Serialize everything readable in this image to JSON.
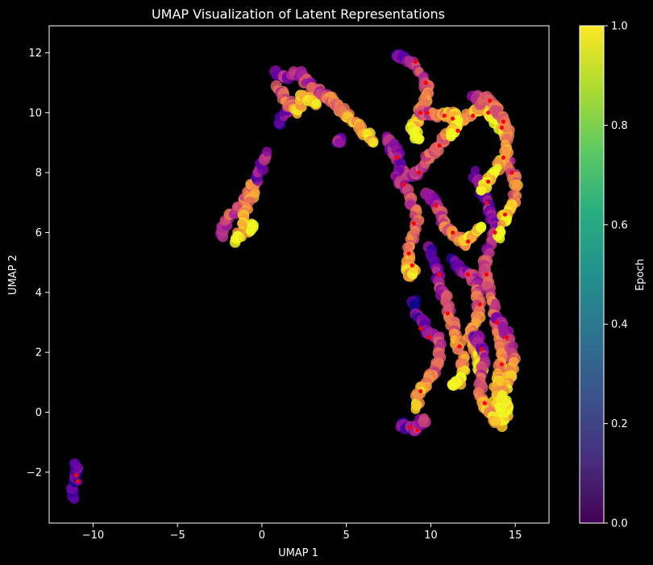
{
  "chart_data": {
    "type": "scatter",
    "title": "UMAP Visualization of Latent Representations",
    "xlabel": "UMAP 1",
    "ylabel": "UMAP 2",
    "xlim": [
      -12.6,
      17.0
    ],
    "ylim": [
      -3.7,
      12.9
    ],
    "xticks": [
      -10,
      -5,
      0,
      5,
      10,
      15
    ],
    "xtick_labels": [
      "−10",
      "−5",
      "0",
      "5",
      "10",
      "15"
    ],
    "yticks": [
      -2,
      0,
      2,
      4,
      6,
      8,
      10,
      12
    ],
    "ytick_labels": [
      "−2",
      "0",
      "2",
      "4",
      "6",
      "8",
      "10",
      "12"
    ],
    "grid": false,
    "background": "#000000",
    "colormap_main": "plasma",
    "highlight_color": "#ff0000",
    "colorbar": {
      "label": "Epoch",
      "colormap": "viridis",
      "range": [
        0.0,
        1.0
      ],
      "ticks": [
        0.0,
        0.2,
        0.4,
        0.6,
        0.8,
        1.0
      ],
      "tick_labels": [
        "0.0",
        "0.2",
        "0.4",
        "0.6",
        "0.8",
        "1.0"
      ]
    },
    "path_series": [
      {
        "points": [
          [
            -11.2,
            -2.9
          ],
          [
            -11.1,
            -2.4
          ],
          [
            -11.0,
            -2.0
          ],
          [
            -11.1,
            -1.7
          ]
        ],
        "color": [
          0.05,
          0.2
        ],
        "highlight": [
          [
            -10.9,
            -2.3
          ],
          [
            -11.0,
            -2.1
          ]
        ]
      },
      {
        "points": [
          [
            -2.5,
            5.9
          ],
          [
            -2.2,
            6.2
          ],
          [
            -1.8,
            6.6
          ],
          [
            -1.3,
            6.9
          ],
          [
            -0.8,
            7.3
          ],
          [
            -0.3,
            7.7
          ],
          [
            -0.7,
            7.0
          ],
          [
            -1.2,
            6.3
          ],
          [
            -1.7,
            5.7
          ],
          [
            -0.8,
            6.0
          ],
          [
            -0.6,
            6.3
          ]
        ],
        "color": [
          0.4,
          1.0
        ],
        "highlight": []
      },
      {
        "points": [
          [
            -0.3,
            7.7
          ],
          [
            -0.1,
            8.1
          ],
          [
            0.3,
            8.7
          ]
        ],
        "color": [
          0.2,
          0.3
        ],
        "highlight": []
      },
      {
        "points": [
          [
            1.0,
            9.6
          ],
          [
            1.5,
            10.0
          ],
          [
            1.8,
            10.3
          ]
        ],
        "color": [
          0.15,
          0.3
        ],
        "highlight": []
      },
      {
        "points": [
          [
            0.9,
            11.3
          ],
          [
            1.5,
            11.2
          ],
          [
            2.2,
            11.3
          ],
          [
            2.6,
            11.1
          ],
          [
            3.1,
            10.8
          ],
          [
            3.6,
            10.6
          ],
          [
            4.0,
            10.5
          ],
          [
            4.4,
            10.3
          ],
          [
            4.8,
            10.0
          ],
          [
            5.2,
            9.8
          ],
          [
            5.7,
            9.6
          ],
          [
            6.2,
            9.3
          ],
          [
            6.6,
            9.0
          ]
        ],
        "color": [
          0.25,
          0.95
        ],
        "highlight": []
      },
      {
        "points": [
          [
            1.0,
            10.8
          ],
          [
            1.4,
            10.5
          ],
          [
            2.0,
            10.0
          ],
          [
            2.5,
            10.6
          ],
          [
            3.2,
            10.3
          ]
        ],
        "color": [
          0.5,
          1.0
        ],
        "highlight": []
      },
      {
        "points": [
          [
            4.5,
            9.1
          ],
          [
            4.6,
            9.0
          ]
        ],
        "color": [
          0.2,
          0.3
        ],
        "highlight": []
      },
      {
        "points": [
          [
            7.3,
            9.2
          ],
          [
            7.7,
            8.8
          ],
          [
            8.1,
            8.4
          ],
          [
            8.5,
            7.9
          ],
          [
            9.0,
            7.9
          ],
          [
            9.5,
            8.3
          ],
          [
            10.0,
            8.6
          ],
          [
            10.5,
            8.9
          ],
          [
            11.0,
            9.2
          ],
          [
            11.5,
            9.5
          ],
          [
            12.0,
            9.8
          ],
          [
            12.5,
            10.0
          ],
          [
            13.0,
            10.1
          ],
          [
            13.5,
            10.0
          ],
          [
            14.0,
            9.6
          ],
          [
            14.5,
            9.2
          ]
        ],
        "color": [
          0.3,
          1.0
        ],
        "highlight": [
          [
            8.0,
            8.5
          ],
          [
            9.3,
            8.0
          ],
          [
            10.5,
            8.9
          ],
          [
            11.6,
            9.4
          ],
          [
            12.5,
            9.9
          ],
          [
            13.4,
            10.0
          ],
          [
            14.2,
            9.5
          ]
        ]
      },
      {
        "points": [
          [
            7.8,
            9.0
          ],
          [
            8.2,
            8.4
          ],
          [
            8.0,
            7.8
          ],
          [
            8.4,
            7.5
          ],
          [
            8.8,
            7.0
          ],
          [
            9.2,
            6.5
          ],
          [
            9.0,
            6.0
          ],
          [
            8.8,
            5.5
          ],
          [
            8.6,
            5.0
          ],
          [
            8.8,
            4.5
          ],
          [
            9.0,
            4.8
          ]
        ],
        "color": [
          0.2,
          0.9
        ],
        "highlight": [
          [
            8.4,
            7.6
          ],
          [
            9.0,
            6.3
          ],
          [
            8.7,
            5.3
          ],
          [
            8.9,
            4.9
          ]
        ]
      },
      {
        "points": [
          [
            8.0,
            12.0
          ],
          [
            8.5,
            11.8
          ],
          [
            9.0,
            11.6
          ],
          [
            9.5,
            11.2
          ],
          [
            9.8,
            10.8
          ],
          [
            9.6,
            10.3
          ],
          [
            9.3,
            9.8
          ],
          [
            9.0,
            9.5
          ],
          [
            9.3,
            9.1
          ]
        ],
        "color": [
          0.2,
          1.0
        ],
        "highlight": [
          [
            9.1,
            11.7
          ],
          [
            9.7,
            11.0
          ],
          [
            9.4,
            10.0
          ]
        ]
      },
      {
        "points": [
          [
            9.3,
            10.0
          ],
          [
            9.8,
            10.0
          ],
          [
            10.3,
            9.9
          ],
          [
            10.8,
            9.9
          ],
          [
            11.3,
            10.0
          ],
          [
            11.5,
            9.6
          ],
          [
            11.2,
            9.2
          ]
        ],
        "color": [
          0.4,
          1.0
        ],
        "highlight": [
          [
            9.8,
            10.0
          ],
          [
            10.8,
            9.9
          ],
          [
            11.3,
            9.8
          ]
        ]
      },
      {
        "points": [
          [
            9.8,
            7.3
          ],
          [
            10.2,
            7.0
          ],
          [
            10.5,
            6.7
          ],
          [
            10.8,
            6.3
          ],
          [
            11.2,
            6.0
          ],
          [
            11.6,
            5.8
          ],
          [
            12.0,
            5.6
          ],
          [
            12.5,
            5.9
          ],
          [
            13.0,
            6.2
          ]
        ],
        "color": [
          0.3,
          1.0
        ],
        "highlight": [
          [
            10.3,
            6.9
          ],
          [
            11.3,
            6.0
          ],
          [
            12.2,
            5.7
          ]
        ]
      },
      {
        "points": [
          [
            10.0,
            5.5
          ],
          [
            10.3,
            5.0
          ],
          [
            10.5,
            4.5
          ],
          [
            10.7,
            4.0
          ],
          [
            11.0,
            3.5
          ],
          [
            11.3,
            3.0
          ],
          [
            11.5,
            2.5
          ],
          [
            11.8,
            2.0
          ],
          [
            12.0,
            1.5
          ],
          [
            11.7,
            1.0
          ],
          [
            11.3,
            0.9
          ]
        ],
        "color": [
          0.2,
          1.0
        ],
        "highlight": [
          [
            10.5,
            4.6
          ],
          [
            11.0,
            3.3
          ],
          [
            11.7,
            2.2
          ]
        ]
      },
      {
        "points": [
          [
            11.4,
            5.1
          ],
          [
            11.8,
            4.8
          ],
          [
            12.2,
            4.6
          ],
          [
            12.6,
            4.4
          ],
          [
            12.8,
            4.0
          ],
          [
            12.9,
            3.5
          ],
          [
            12.6,
            3.0
          ],
          [
            12.3,
            2.6
          ],
          [
            12.5,
            2.2
          ],
          [
            12.8,
            1.8
          ],
          [
            13.0,
            1.3
          ]
        ],
        "color": [
          0.2,
          1.0
        ],
        "highlight": [
          [
            12.2,
            4.6
          ],
          [
            12.9,
            3.6
          ]
        ]
      },
      {
        "points": [
          [
            9.0,
            3.7
          ],
          [
            9.3,
            3.2
          ],
          [
            9.6,
            2.8
          ],
          [
            10.0,
            2.6
          ],
          [
            10.4,
            2.5
          ],
          [
            10.6,
            2.0
          ],
          [
            10.3,
            1.5
          ],
          [
            10.0,
            1.2
          ],
          [
            9.6,
            0.9
          ],
          [
            9.3,
            0.6
          ],
          [
            9.1,
            0.1
          ]
        ],
        "color": [
          0.1,
          0.9
        ],
        "highlight": [
          [
            9.4,
            2.8
          ],
          [
            9.9,
            2.5
          ],
          [
            9.4,
            0.7
          ]
        ]
      },
      {
        "points": [
          [
            8.2,
            -0.4
          ],
          [
            8.6,
            -0.5
          ],
          [
            9.0,
            -0.6
          ],
          [
            9.3,
            -0.5
          ],
          [
            9.6,
            -0.2
          ]
        ],
        "color": [
          0.1,
          0.5
        ],
        "highlight": [
          [
            8.8,
            -0.5
          ],
          [
            9.2,
            -0.6
          ]
        ]
      },
      {
        "points": [
          [
            12.6,
            8.0
          ],
          [
            13.0,
            7.5
          ],
          [
            13.3,
            7.0
          ],
          [
            13.6,
            6.5
          ],
          [
            13.8,
            6.0
          ],
          [
            13.5,
            5.5
          ],
          [
            13.2,
            5.0
          ],
          [
            13.3,
            4.5
          ],
          [
            13.5,
            4.0
          ],
          [
            13.7,
            3.5
          ],
          [
            13.9,
            3.0
          ],
          [
            14.1,
            2.5
          ],
          [
            14.3,
            2.0
          ],
          [
            14.1,
            1.5
          ],
          [
            13.9,
            1.0
          ],
          [
            13.8,
            0.5
          ],
          [
            13.9,
            0.0
          ],
          [
            14.1,
            -0.4
          ],
          [
            14.4,
            -0.1
          ],
          [
            14.5,
            0.4
          ]
        ],
        "color": [
          0.2,
          1.0
        ],
        "highlight": [
          [
            13.3,
            7.0
          ],
          [
            13.8,
            6.0
          ],
          [
            13.3,
            4.6
          ],
          [
            13.9,
            3.0
          ],
          [
            14.2,
            1.6
          ]
        ]
      },
      {
        "points": [
          [
            14.5,
            8.5
          ],
          [
            14.8,
            8.0
          ],
          [
            15.1,
            7.6
          ],
          [
            14.9,
            7.0
          ],
          [
            14.5,
            6.7
          ],
          [
            14.3,
            6.3
          ],
          [
            14.1,
            5.8
          ]
        ],
        "color": [
          0.5,
          1.0
        ],
        "highlight": [
          [
            14.8,
            8.0
          ],
          [
            14.4,
            6.6
          ]
        ]
      },
      {
        "points": [
          [
            12.6,
            2.6
          ],
          [
            12.9,
            2.2
          ],
          [
            13.2,
            1.8
          ],
          [
            13.1,
            1.2
          ],
          [
            12.9,
            0.7
          ],
          [
            13.2,
            0.3
          ],
          [
            13.5,
            0.0
          ],
          [
            13.8,
            -0.3
          ]
        ],
        "color": [
          0.2,
          0.9
        ],
        "highlight": [
          [
            13.0,
            2.1
          ],
          [
            13.2,
            0.3
          ]
        ]
      },
      {
        "points": [
          [
            14.0,
            3.2
          ],
          [
            14.4,
            2.8
          ],
          [
            14.7,
            2.2
          ],
          [
            14.9,
            1.6
          ],
          [
            14.6,
            1.1
          ],
          [
            14.3,
            0.6
          ],
          [
            14.1,
            0.0
          ]
        ],
        "color": [
          0.3,
          1.0
        ],
        "highlight": [
          [
            14.5,
            2.5
          ]
        ]
      },
      {
        "points": [
          [
            12.6,
            10.6
          ],
          [
            13.0,
            10.3
          ],
          [
            13.4,
            10.5
          ],
          [
            13.8,
            10.2
          ],
          [
            14.2,
            9.8
          ],
          [
            14.6,
            9.4
          ],
          [
            14.5,
            8.9
          ],
          [
            14.2,
            8.4
          ],
          [
            13.8,
            8.0
          ],
          [
            13.4,
            7.7
          ],
          [
            13.0,
            7.4
          ]
        ],
        "color": [
          0.4,
          1.0
        ],
        "highlight": [
          [
            13.5,
            10.4
          ],
          [
            14.3,
            9.7
          ],
          [
            14.3,
            8.5
          ],
          [
            13.4,
            7.7
          ]
        ]
      }
    ]
  }
}
